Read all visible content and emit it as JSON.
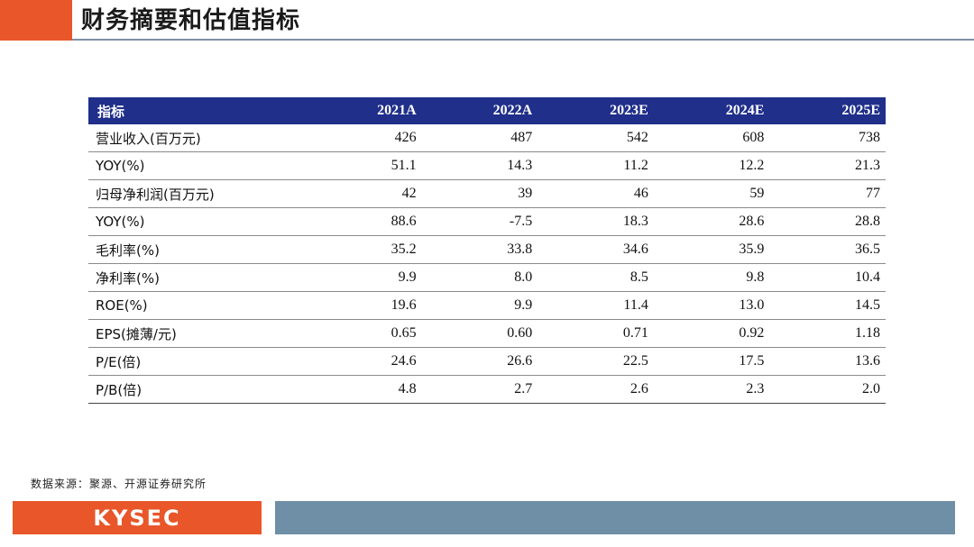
{
  "header": {
    "title": "财务摘要和估值指标"
  },
  "table": {
    "columns": [
      "指标",
      "2021A",
      "2022A",
      "2023E",
      "2024E",
      "2025E"
    ],
    "rows": [
      [
        "营业收入(百万元)",
        "426",
        "487",
        "542",
        "608",
        "738"
      ],
      [
        "YOY(%)",
        "51.1",
        "14.3",
        "11.2",
        "12.2",
        "21.3"
      ],
      [
        "归母净利润(百万元)",
        "42",
        "39",
        "46",
        "59",
        "77"
      ],
      [
        "YOY(%)",
        "88.6",
        "-7.5",
        "18.3",
        "28.6",
        "28.8"
      ],
      [
        "毛利率(%)",
        "35.2",
        "33.8",
        "34.6",
        "35.9",
        "36.5"
      ],
      [
        "净利率(%)",
        "9.9",
        "8.0",
        "8.5",
        "9.8",
        "10.4"
      ],
      [
        "ROE(%)",
        "19.6",
        "9.9",
        "11.4",
        "13.0",
        "14.5"
      ],
      [
        "EPS(摊薄/元)",
        "0.65",
        "0.60",
        "0.71",
        "0.92",
        "1.18"
      ],
      [
        "P/E(倍)",
        "24.6",
        "26.6",
        "22.5",
        "17.5",
        "13.6"
      ],
      [
        "P/B(倍)",
        "4.8",
        "2.7",
        "2.6",
        "2.3",
        "2.0"
      ]
    ]
  },
  "footer": {
    "source": "数据来源：聚源、开源证券研究所",
    "logo_text": "KYSEC"
  },
  "colors": {
    "accent": "#e8562a",
    "header_fill": "#1f2f8a",
    "footer_bar": "#6f8fa7"
  }
}
